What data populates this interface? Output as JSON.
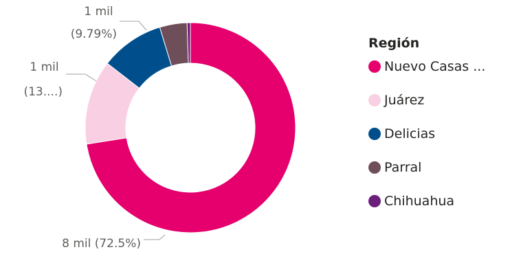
{
  "chart_data": {
    "type": "pie",
    "variant": "donut",
    "categories": [
      "Nuevo Casas ...",
      "Juárez",
      "Delicias",
      "Parral",
      "Chihuahua"
    ],
    "percentages": [
      72.5,
      13.0,
      9.79,
      4.21,
      0.5
    ],
    "colors": [
      "#e5006d",
      "#f9cfe3",
      "#004f8c",
      "#6e4f59",
      "#6b1f7b"
    ],
    "data_labels": [
      {
        "index": 0,
        "lines": [
          "8 mil (72.5%)"
        ]
      },
      {
        "index": 1,
        "lines": [
          "1 mil",
          "(13....)"
        ]
      },
      {
        "index": 2,
        "lines": [
          "1 mil",
          "(9.79%)"
        ]
      }
    ],
    "legend": {
      "title": "Región",
      "placement": "right",
      "items": [
        "Nuevo Casas ...",
        "Juárez",
        "Delicias",
        "Parral",
        "Chihuahua"
      ]
    }
  }
}
